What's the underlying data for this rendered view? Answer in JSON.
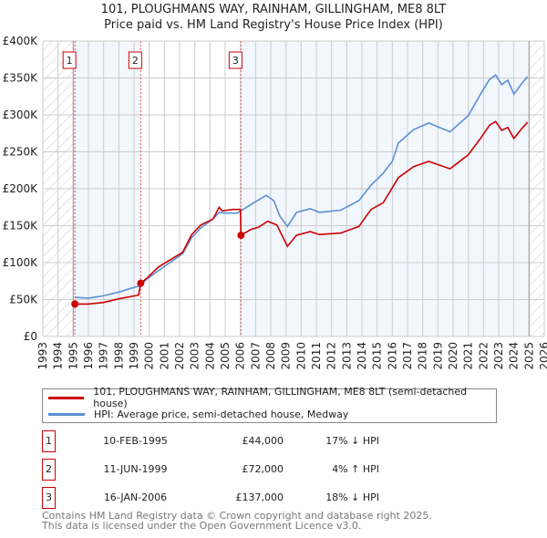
{
  "chart_data": {
    "type": "line",
    "title": "101, PLOUGHMANS WAY, RAINHAM, GILLINGHAM, ME8 8LT",
    "subtitle": "Price paid vs. HM Land Registry's House Price Index (HPI)",
    "ylim": [
      0,
      400000
    ],
    "xlim": [
      1993,
      2026
    ],
    "y_ticks": [
      {
        "v": 0,
        "label": "£0"
      },
      {
        "v": 50000,
        "label": "£50K"
      },
      {
        "v": 100000,
        "label": "£100K"
      },
      {
        "v": 150000,
        "label": "£150K"
      },
      {
        "v": 200000,
        "label": "£200K"
      },
      {
        "v": 250000,
        "label": "£250K"
      },
      {
        "v": 300000,
        "label": "£300K"
      },
      {
        "v": 350000,
        "label": "£350K"
      },
      {
        "v": 400000,
        "label": "£400K"
      }
    ],
    "x_ticks": [
      "1993",
      "1994",
      "1995",
      "1996",
      "1997",
      "1998",
      "1999",
      "2000",
      "2001",
      "2002",
      "2003",
      "2004",
      "2005",
      "2006",
      "2007",
      "2008",
      "2009",
      "2010",
      "2011",
      "2012",
      "2013",
      "2014",
      "2015",
      "2016",
      "2017",
      "2018",
      "2019",
      "2020",
      "2021",
      "2022",
      "2023",
      "2024",
      "2025",
      "2026"
    ],
    "grid": true,
    "series": [
      {
        "name": "101, PLOUGHMANS WAY, RAINHAM, GILLINGHAM, ME8 8LT (semi-detached house)",
        "color": "#cc0000",
        "points": [
          [
            1995.11,
            44000
          ],
          [
            1996,
            44000
          ],
          [
            1997,
            46000
          ],
          [
            1998,
            51000
          ],
          [
            1999.3,
            56000
          ],
          [
            1999.44,
            72000
          ],
          [
            1999.8,
            78000
          ],
          [
            2000.6,
            94000
          ],
          [
            2002.2,
            114000
          ],
          [
            2002.8,
            138000
          ],
          [
            2003.4,
            151000
          ],
          [
            2004.2,
            159000
          ],
          [
            2004.6,
            175000
          ],
          [
            2004.8,
            170000
          ],
          [
            2005.5,
            172000
          ],
          [
            2006.0,
            172000
          ],
          [
            2006.04,
            137000
          ],
          [
            2006.7,
            145000
          ],
          [
            2007.2,
            148000
          ],
          [
            2007.8,
            156000
          ],
          [
            2008.4,
            151000
          ],
          [
            2009.1,
            122000
          ],
          [
            2009.7,
            137000
          ],
          [
            2010.6,
            142000
          ],
          [
            2011.2,
            138000
          ],
          [
            2012.6,
            140000
          ],
          [
            2013.8,
            149000
          ],
          [
            2014.6,
            172000
          ],
          [
            2015.4,
            181000
          ],
          [
            2016.4,
            215000
          ],
          [
            2017.4,
            230000
          ],
          [
            2018.4,
            237000
          ],
          [
            2019.8,
            227000
          ],
          [
            2021,
            246000
          ],
          [
            2021.8,
            268000
          ],
          [
            2022.4,
            286000
          ],
          [
            2022.8,
            291000
          ],
          [
            2023.2,
            279000
          ],
          [
            2023.6,
            283000
          ],
          [
            2024.0,
            268000
          ],
          [
            2024.5,
            281000
          ],
          [
            2024.9,
            290000
          ]
        ]
      },
      {
        "name": "HPI: Average price, semi-detached house, Medway",
        "color": "#5b8fd4",
        "points": [
          [
            1995.11,
            53000
          ],
          [
            1996,
            52000
          ],
          [
            1997,
            55000
          ],
          [
            1998,
            60000
          ],
          [
            1998.6,
            64000
          ],
          [
            1999.44,
            69000
          ],
          [
            1999.8,
            77000
          ],
          [
            2000.6,
            89000
          ],
          [
            2002.2,
            112000
          ],
          [
            2002.8,
            134000
          ],
          [
            2003.4,
            147000
          ],
          [
            2004.2,
            159000
          ],
          [
            2004.6,
            168000
          ],
          [
            2005,
            167000
          ],
          [
            2005.8,
            167000
          ],
          [
            2006.8,
            180000
          ],
          [
            2007.7,
            191000
          ],
          [
            2008.2,
            184000
          ],
          [
            2008.6,
            163000
          ],
          [
            2009.1,
            149000
          ],
          [
            2009.7,
            168000
          ],
          [
            2010.6,
            173000
          ],
          [
            2011.2,
            168000
          ],
          [
            2012.6,
            171000
          ],
          [
            2013.8,
            184000
          ],
          [
            2014.6,
            205000
          ],
          [
            2015.4,
            221000
          ],
          [
            2016,
            237000
          ],
          [
            2016.4,
            262000
          ],
          [
            2017.4,
            280000
          ],
          [
            2018.4,
            289000
          ],
          [
            2019.8,
            277000
          ],
          [
            2021,
            299000
          ],
          [
            2021.8,
            328000
          ],
          [
            2022.4,
            348000
          ],
          [
            2022.8,
            354000
          ],
          [
            2023.2,
            341000
          ],
          [
            2023.6,
            347000
          ],
          [
            2024.0,
            328000
          ],
          [
            2024.5,
            342000
          ],
          [
            2024.9,
            352000
          ]
        ]
      }
    ],
    "sales": [
      {
        "n": "1",
        "year": 1995.11,
        "price": 44000
      },
      {
        "n": "2",
        "year": 1999.44,
        "price": 72000
      },
      {
        "n": "3",
        "year": 2006.04,
        "price": 137000
      }
    ],
    "legend_placement": "below"
  },
  "legend": {
    "red": "101, PLOUGHMANS WAY, RAINHAM, GILLINGHAM, ME8 8LT (semi-detached house)",
    "blue": "HPI: Average price, semi-detached house, Medway"
  },
  "table": [
    {
      "n": "1",
      "date": "10-FEB-1995",
      "price": "£44,000",
      "hpi": "17% ↓ HPI"
    },
    {
      "n": "2",
      "date": "11-JUN-1999",
      "price": "£72,000",
      "hpi": "4% ↑ HPI"
    },
    {
      "n": "3",
      "date": "16-JAN-2006",
      "price": "£137,000",
      "hpi": "18% ↓ HPI"
    }
  ],
  "footer": {
    "line1": "Contains HM Land Registry data © Crown copyright and database right 2025.",
    "line2": "This data is licensed under the Open Government Licence v3.0."
  }
}
